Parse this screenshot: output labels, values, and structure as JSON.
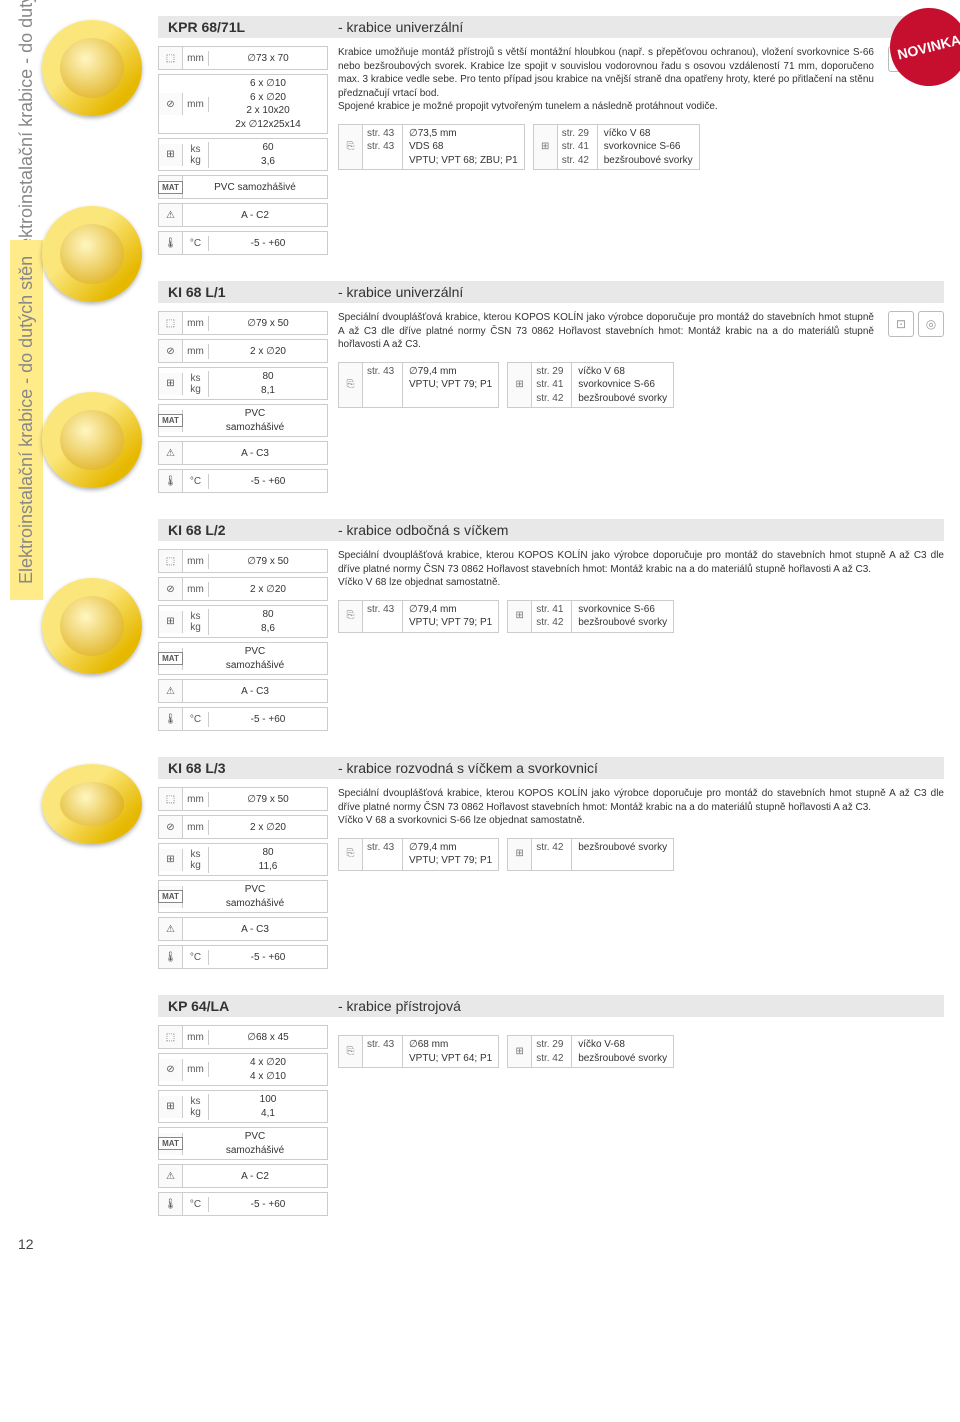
{
  "page_number": "12",
  "sidebar_text": "Elektroinstalační krabice - do dutých stěn",
  "novinka_badge": "NOVINKA",
  "products": [
    {
      "code": "KPR 68/71L",
      "title": "- krabice univerzální",
      "specs": [
        {
          "icon": "⬚",
          "unit": "mm",
          "value": "∅73 x 70"
        },
        {
          "icon": "⊘",
          "unit": "mm",
          "value": "6 x ∅10\n6 x ∅20\n2 x 10x20\n2x ∅12x25x14"
        },
        {
          "icon": "⊞",
          "unit": "ks\nkg",
          "value": "60\n3,6"
        },
        {
          "icon": "MAT",
          "unit": "",
          "value": "PVC samozhášivé"
        },
        {
          "icon": "⚠",
          "unit": "",
          "value": "A - C2"
        },
        {
          "icon": "🌡",
          "unit": "°C",
          "value": "-5 - +60"
        }
      ],
      "description": "Krabice umožňuje montáž přístrojů s větší montážní hloubkou (např. s přepěťovou ochranou), vložení svorkovnice S-66 nebo bezšroubových svorek. Krabice lze spojit v souvislou vodorovnou řadu s osovou vzdáleností 71 mm, doporučeno max. 3 krabice vedle sebe. Pro tento případ jsou krabice na vnější straně dna opatřeny hroty, které po přitlačení na stěnu předznačují vrtací bod.\nSpojené krabice je možné propojit vytvořeným tunelem a následně protáhnout vodiče.",
      "refs": [
        {
          "icon": "⎘",
          "page": "str. 43\nstr. 43",
          "text": "∅73,5 mm\nVDS 68\nVPTU; VPT 68; ZBU; P1"
        },
        {
          "icon": "⊞",
          "page": "str. 29\nstr. 41\nstr. 42",
          "text": "víčko V 68\nsvorkovnice S-66\nbezšroubové svorky"
        }
      ],
      "side_icons": true
    },
    {
      "code": "KI 68 L/1",
      "title": "- krabice univerzální",
      "specs": [
        {
          "icon": "⬚",
          "unit": "mm",
          "value": "∅79 x 50"
        },
        {
          "icon": "⊘",
          "unit": "mm",
          "value": "2 x ∅20"
        },
        {
          "icon": "⊞",
          "unit": "ks\nkg",
          "value": "80\n8,1"
        },
        {
          "icon": "MAT",
          "unit": "",
          "value": "PVC\nsamozhášivé"
        },
        {
          "icon": "⚠",
          "unit": "",
          "value": "A - C3"
        },
        {
          "icon": "🌡",
          "unit": "°C",
          "value": "-5 - +60"
        }
      ],
      "description": "Speciální dvouplášťová krabice, kterou KOPOS KOLÍN jako výrobce doporučuje pro montáž do stavebních hmot stupně A až C3 dle dříve platné normy ČSN 73 0862 Hořlavost stavebních hmot: Montáž krabic na a do materiálů stupně hořlavosti A až C3.",
      "refs": [
        {
          "icon": "⎘",
          "page": "str. 43",
          "text": "∅79,4 mm\nVPTU; VPT 79; P1"
        },
        {
          "icon": "⊞",
          "page": "str. 29\nstr. 41\nstr. 42",
          "text": "víčko V 68\nsvorkovnice S-66\nbezšroubové svorky"
        }
      ],
      "side_icons": true
    },
    {
      "code": "KI 68 L/2",
      "title": "- krabice odbočná s víčkem",
      "specs": [
        {
          "icon": "⬚",
          "unit": "mm",
          "value": "∅79 x 50"
        },
        {
          "icon": "⊘",
          "unit": "mm",
          "value": "2 x ∅20"
        },
        {
          "icon": "⊞",
          "unit": "ks\nkg",
          "value": "80\n8,6"
        },
        {
          "icon": "MAT",
          "unit": "",
          "value": "PVC\nsamozhášivé"
        },
        {
          "icon": "⚠",
          "unit": "",
          "value": "A - C3"
        },
        {
          "icon": "🌡",
          "unit": "°C",
          "value": "-5 - +60"
        }
      ],
      "description": "Speciální dvouplášťová krabice, kterou KOPOS KOLÍN jako výrobce doporučuje pro montáž do stavebních hmot stupně A až C3 dle dříve platné normy ČSN 73 0862 Hořlavost stavebních hmot: Montáž krabic na a do materiálů stupně hořlavosti A až C3.\nVíčko V 68 lze objednat samostatně.",
      "refs": [
        {
          "icon": "⎘",
          "page": "str. 43",
          "text": "∅79,4 mm\nVPTU; VPT 79; P1"
        },
        {
          "icon": "⊞",
          "page": "str. 41\nstr. 42",
          "text": "svorkovnice S-66\nbezšroubové svorky"
        }
      ],
      "side_icons": false
    },
    {
      "code": "KI 68 L/3",
      "title": "- krabice rozvodná s víčkem a svorkovnicí",
      "specs": [
        {
          "icon": "⬚",
          "unit": "mm",
          "value": "∅79 x 50"
        },
        {
          "icon": "⊘",
          "unit": "mm",
          "value": "2 x ∅20"
        },
        {
          "icon": "⊞",
          "unit": "ks\nkg",
          "value": "80\n11,6"
        },
        {
          "icon": "MAT",
          "unit": "",
          "value": "PVC\nsamozhášivé"
        },
        {
          "icon": "⚠",
          "unit": "",
          "value": "A - C3"
        },
        {
          "icon": "🌡",
          "unit": "°C",
          "value": "-5 - +60"
        }
      ],
      "description": "Speciální dvouplášťová krabice, kterou KOPOS KOLÍN jako výrobce doporučuje pro montáž do stavebních hmot stupně A až C3 dle dříve platné normy ČSN 73 0862 Hořlavost stavebních hmot: Montáž krabic na a do materiálů stupně hořlavosti A až C3.\nVíčko V 68 a svorkovnici S-66 lze objednat samostatně.",
      "refs": [
        {
          "icon": "⎘",
          "page": "str. 43",
          "text": "∅79,4 mm\nVPTU; VPT 79; P1"
        },
        {
          "icon": "⊞",
          "page": "str. 42",
          "text": "bezšroubové svorky"
        }
      ],
      "side_icons": false
    },
    {
      "code": "KP 64/LA",
      "title": "- krabice přístrojová",
      "specs": [
        {
          "icon": "⬚",
          "unit": "mm",
          "value": "∅68 x 45"
        },
        {
          "icon": "⊘",
          "unit": "mm",
          "value": "4 x ∅20\n4 x ∅10"
        },
        {
          "icon": "⊞",
          "unit": "ks\nkg",
          "value": "100\n4,1"
        },
        {
          "icon": "MAT",
          "unit": "",
          "value": "PVC\nsamozhášivé"
        },
        {
          "icon": "⚠",
          "unit": "",
          "value": "A - C2"
        },
        {
          "icon": "🌡",
          "unit": "°C",
          "value": "-5 - +60"
        }
      ],
      "description": "",
      "refs": [
        {
          "icon": "⎘",
          "page": "str. 43",
          "text": "∅68 mm\nVPTU; VPT 64; P1"
        },
        {
          "icon": "⊞",
          "page": "str. 29\nstr. 42",
          "text": "víčko V-68\nbezšroubové svorky"
        }
      ],
      "side_icons": false
    }
  ],
  "colors": {
    "header_bg": "#e8e8e8",
    "border": "#cccccc",
    "novinka_bg": "#c60f2e",
    "highlight_bg": "#ffeb8a"
  }
}
